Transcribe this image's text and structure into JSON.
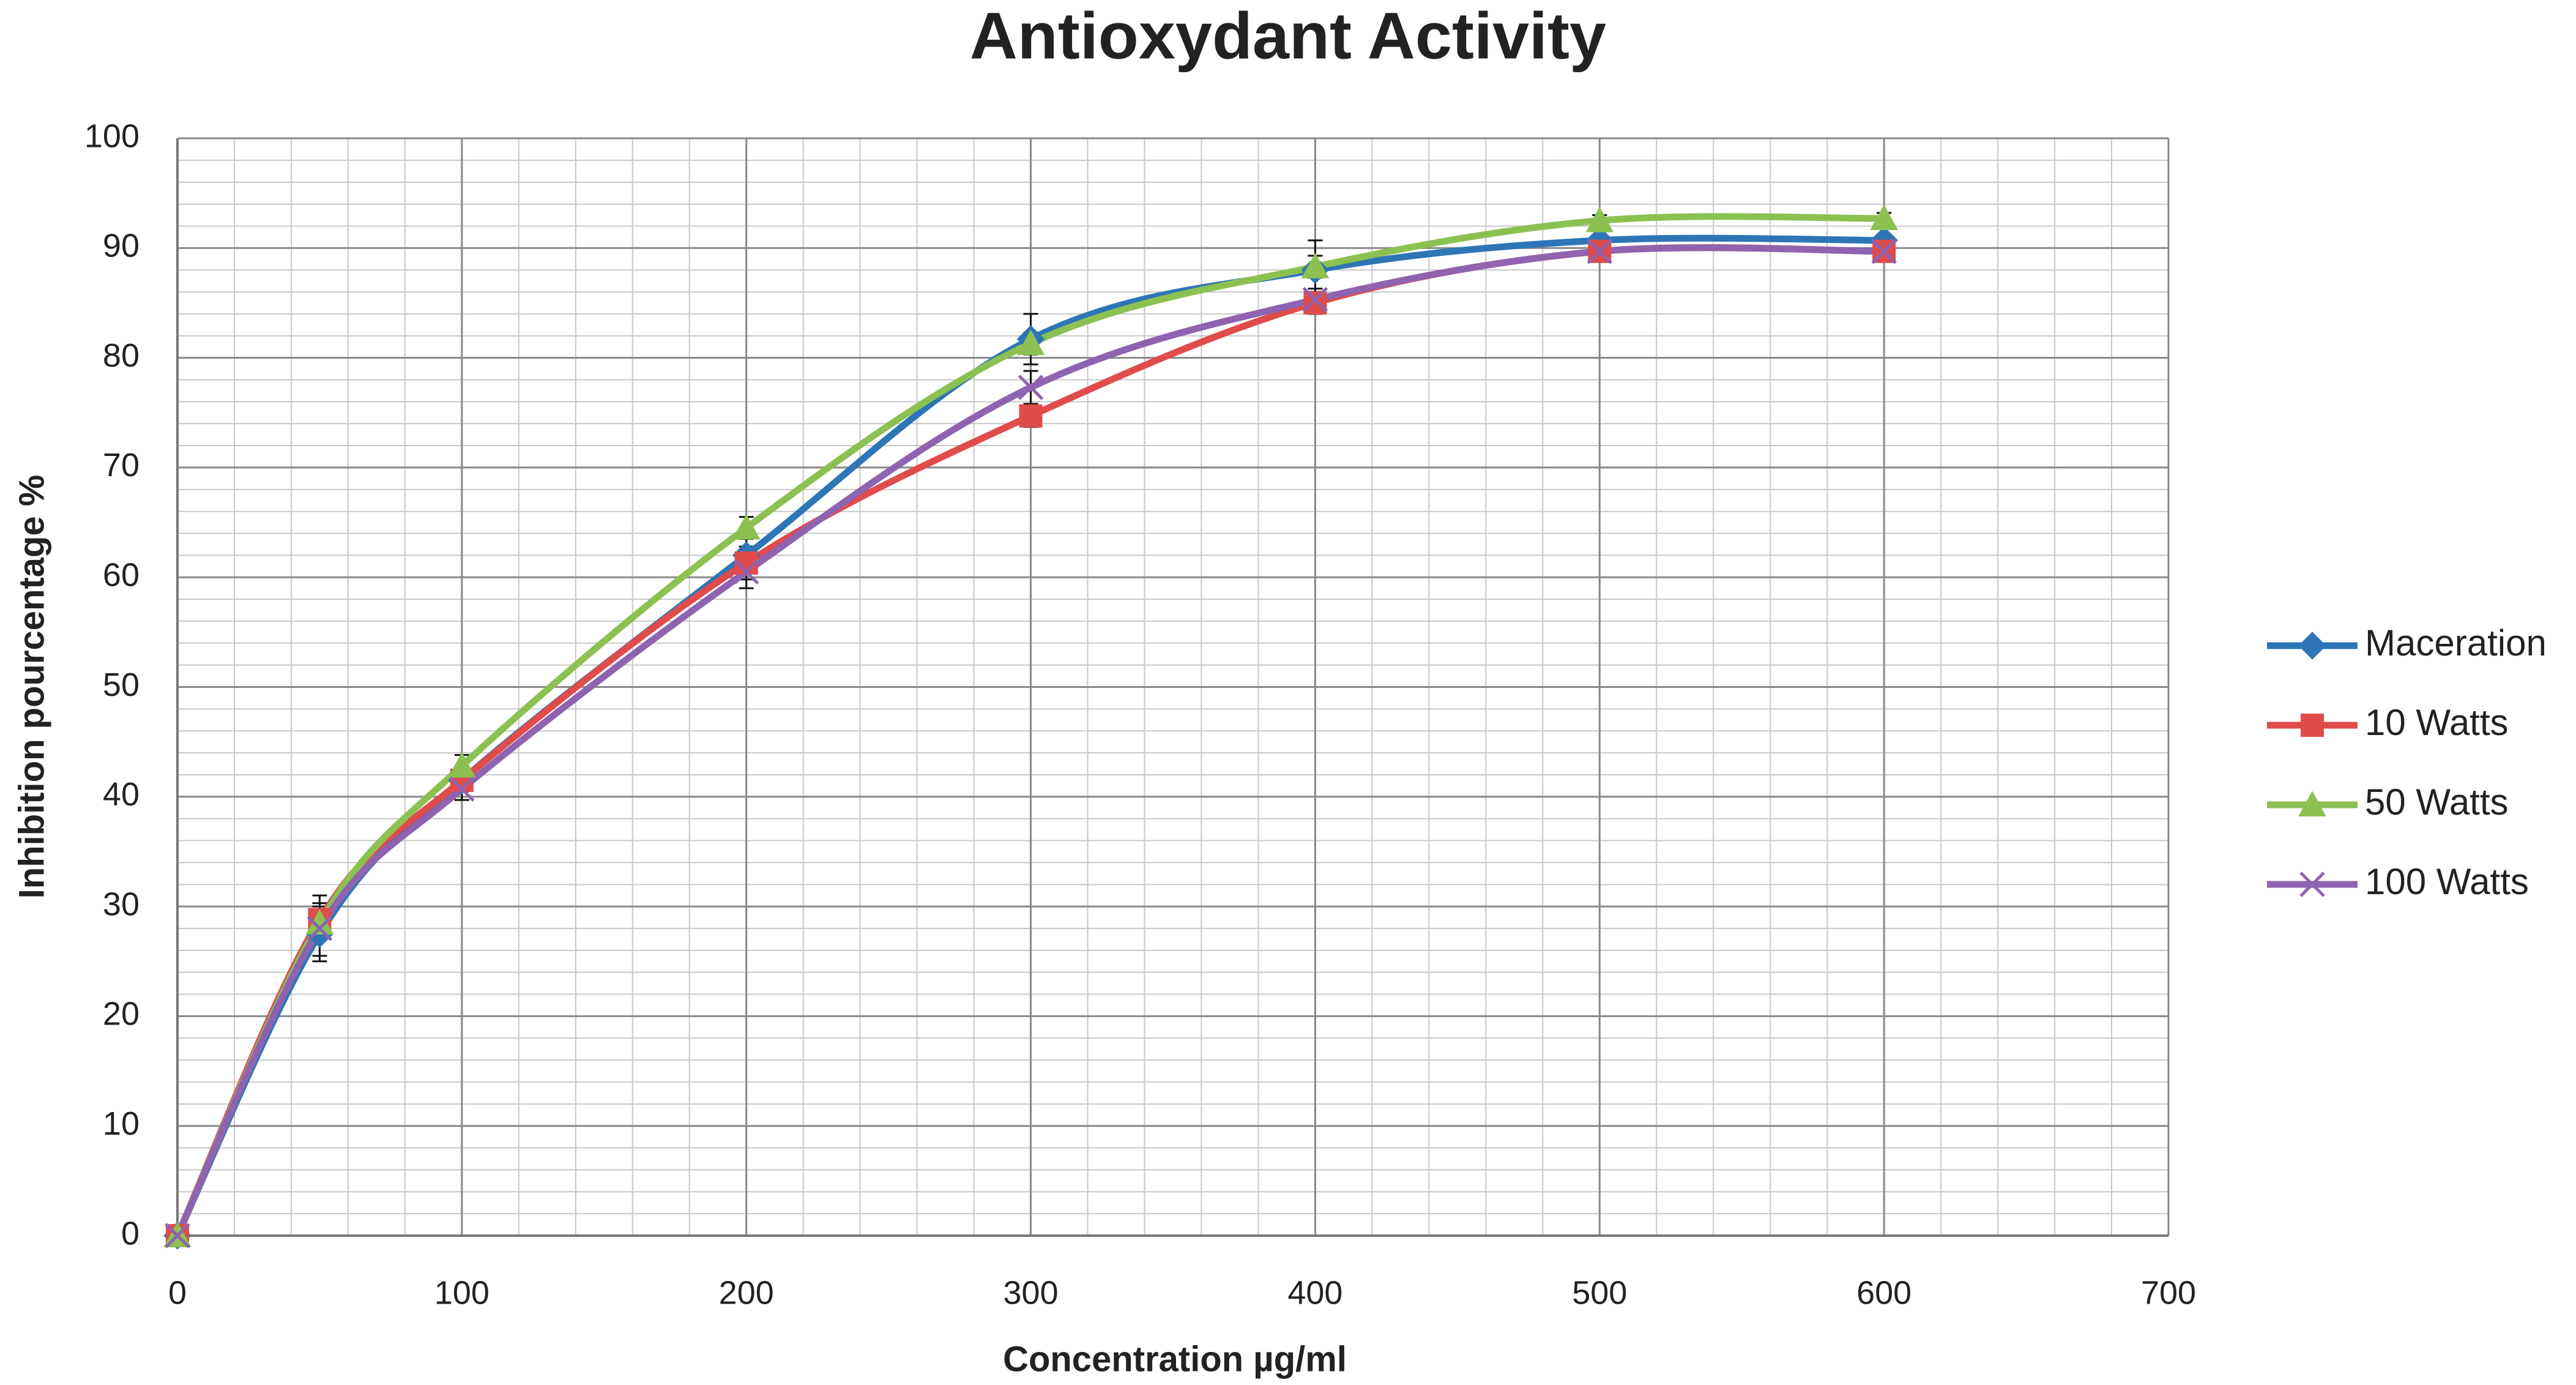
{
  "chart_data": {
    "type": "line",
    "title": "Antioxydant Activity",
    "x_label": "Concentration µg/ml",
    "y_label": "Inhibition pourcentage %",
    "x": [
      0,
      50,
      100,
      200,
      300,
      400,
      500,
      600
    ],
    "series": [
      {
        "name": "Maceration",
        "color": "#2e75b6",
        "marker": "diamond",
        "values": [
          0,
          27.5,
          41.5,
          62,
          81.7,
          88,
          90.7,
          90.7
        ],
        "errors": [
          0,
          2,
          1,
          1.5,
          2.3,
          2.7,
          0.5,
          0.5
        ]
      },
      {
        "name": "10 Watts",
        "color": "#e04b4b",
        "marker": "square",
        "values": [
          0,
          28.8,
          41.5,
          61.3,
          74.7,
          85,
          89.7,
          89.7
        ],
        "errors": [
          0,
          1.5,
          1,
          1.5,
          1,
          1,
          0.5,
          0.5
        ]
      },
      {
        "name": "50 Watts",
        "color": "#8cc152",
        "marker": "triangle",
        "values": [
          0,
          28.5,
          42.8,
          64.5,
          81.3,
          88.3,
          92.5,
          92.7
        ],
        "errors": [
          0,
          1.5,
          1,
          1,
          1,
          1,
          0.5,
          0.5
        ]
      },
      {
        "name": "100 Watts",
        "color": "#8e63b0",
        "marker": "x",
        "values": [
          0,
          28,
          40.7,
          60.5,
          77.3,
          85.3,
          89.7,
          89.7
        ],
        "errors": [
          0,
          3,
          1,
          1.5,
          1.5,
          1,
          0.5,
          0.5
        ]
      }
    ],
    "xlim": [
      0,
      700
    ],
    "xticks": [
      0,
      100,
      200,
      300,
      400,
      500,
      600,
      700
    ],
    "ylim": [
      0,
      100
    ],
    "yticks": [
      0,
      10,
      20,
      30,
      40,
      50,
      60,
      70,
      80,
      90,
      100
    ],
    "grid": true,
    "minor_grid": true,
    "smooth": true,
    "legend": "right"
  }
}
